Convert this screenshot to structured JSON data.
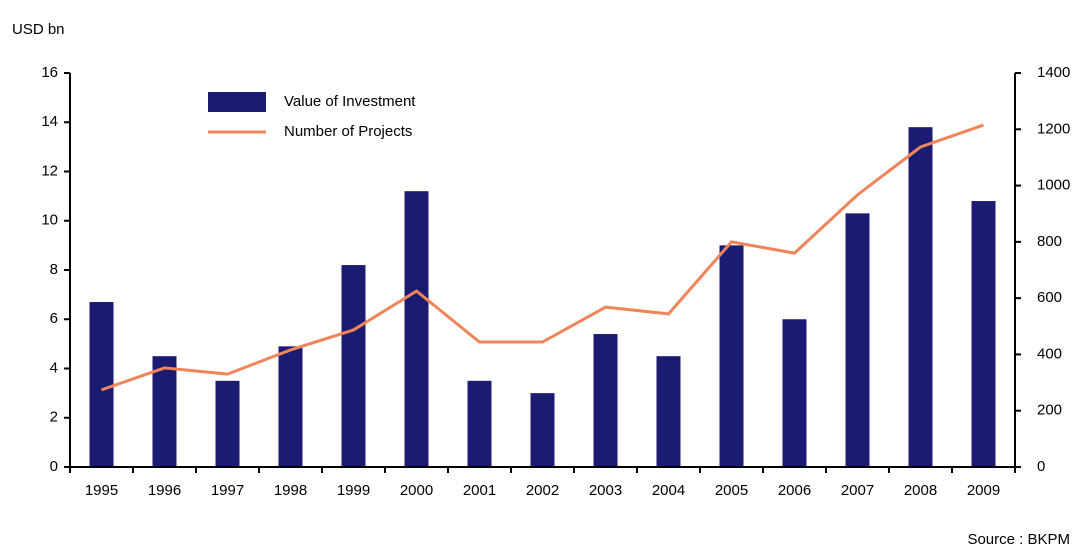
{
  "chart_data": {
    "type": "bar_line",
    "y_label": "USD bn",
    "source": "Source : BKPM",
    "categories": [
      "1995",
      "1996",
      "1997",
      "1998",
      "1999",
      "2000",
      "2001",
      "2002",
      "2003",
      "2004",
      "2005",
      "2006",
      "2007",
      "2008",
      "2009"
    ],
    "series": [
      {
        "name": "Value of Investment",
        "type": "bar",
        "color": "#1b1b72",
        "values": [
          6.7,
          4.5,
          3.5,
          4.9,
          8.2,
          11.2,
          3.5,
          3.0,
          5.4,
          4.5,
          9.0,
          6.0,
          10.3,
          13.8,
          10.8
        ]
      },
      {
        "name": "Number of Projects",
        "type": "line",
        "axis": "y2",
        "color": "#f2845a",
        "values": [
          274,
          352,
          330,
          416,
          487,
          625,
          444,
          444,
          568,
          544,
          800,
          760,
          967,
          1137,
          1215
        ]
      }
    ],
    "ylim": [
      0,
      16
    ],
    "yticks": [
      0,
      2,
      4,
      6,
      8,
      10,
      12,
      14,
      16
    ],
    "y2lim": [
      0,
      1400
    ],
    "y2ticks": [
      0,
      200,
      400,
      600,
      800,
      1000,
      1200,
      1400
    ],
    "legend": "upper left"
  }
}
